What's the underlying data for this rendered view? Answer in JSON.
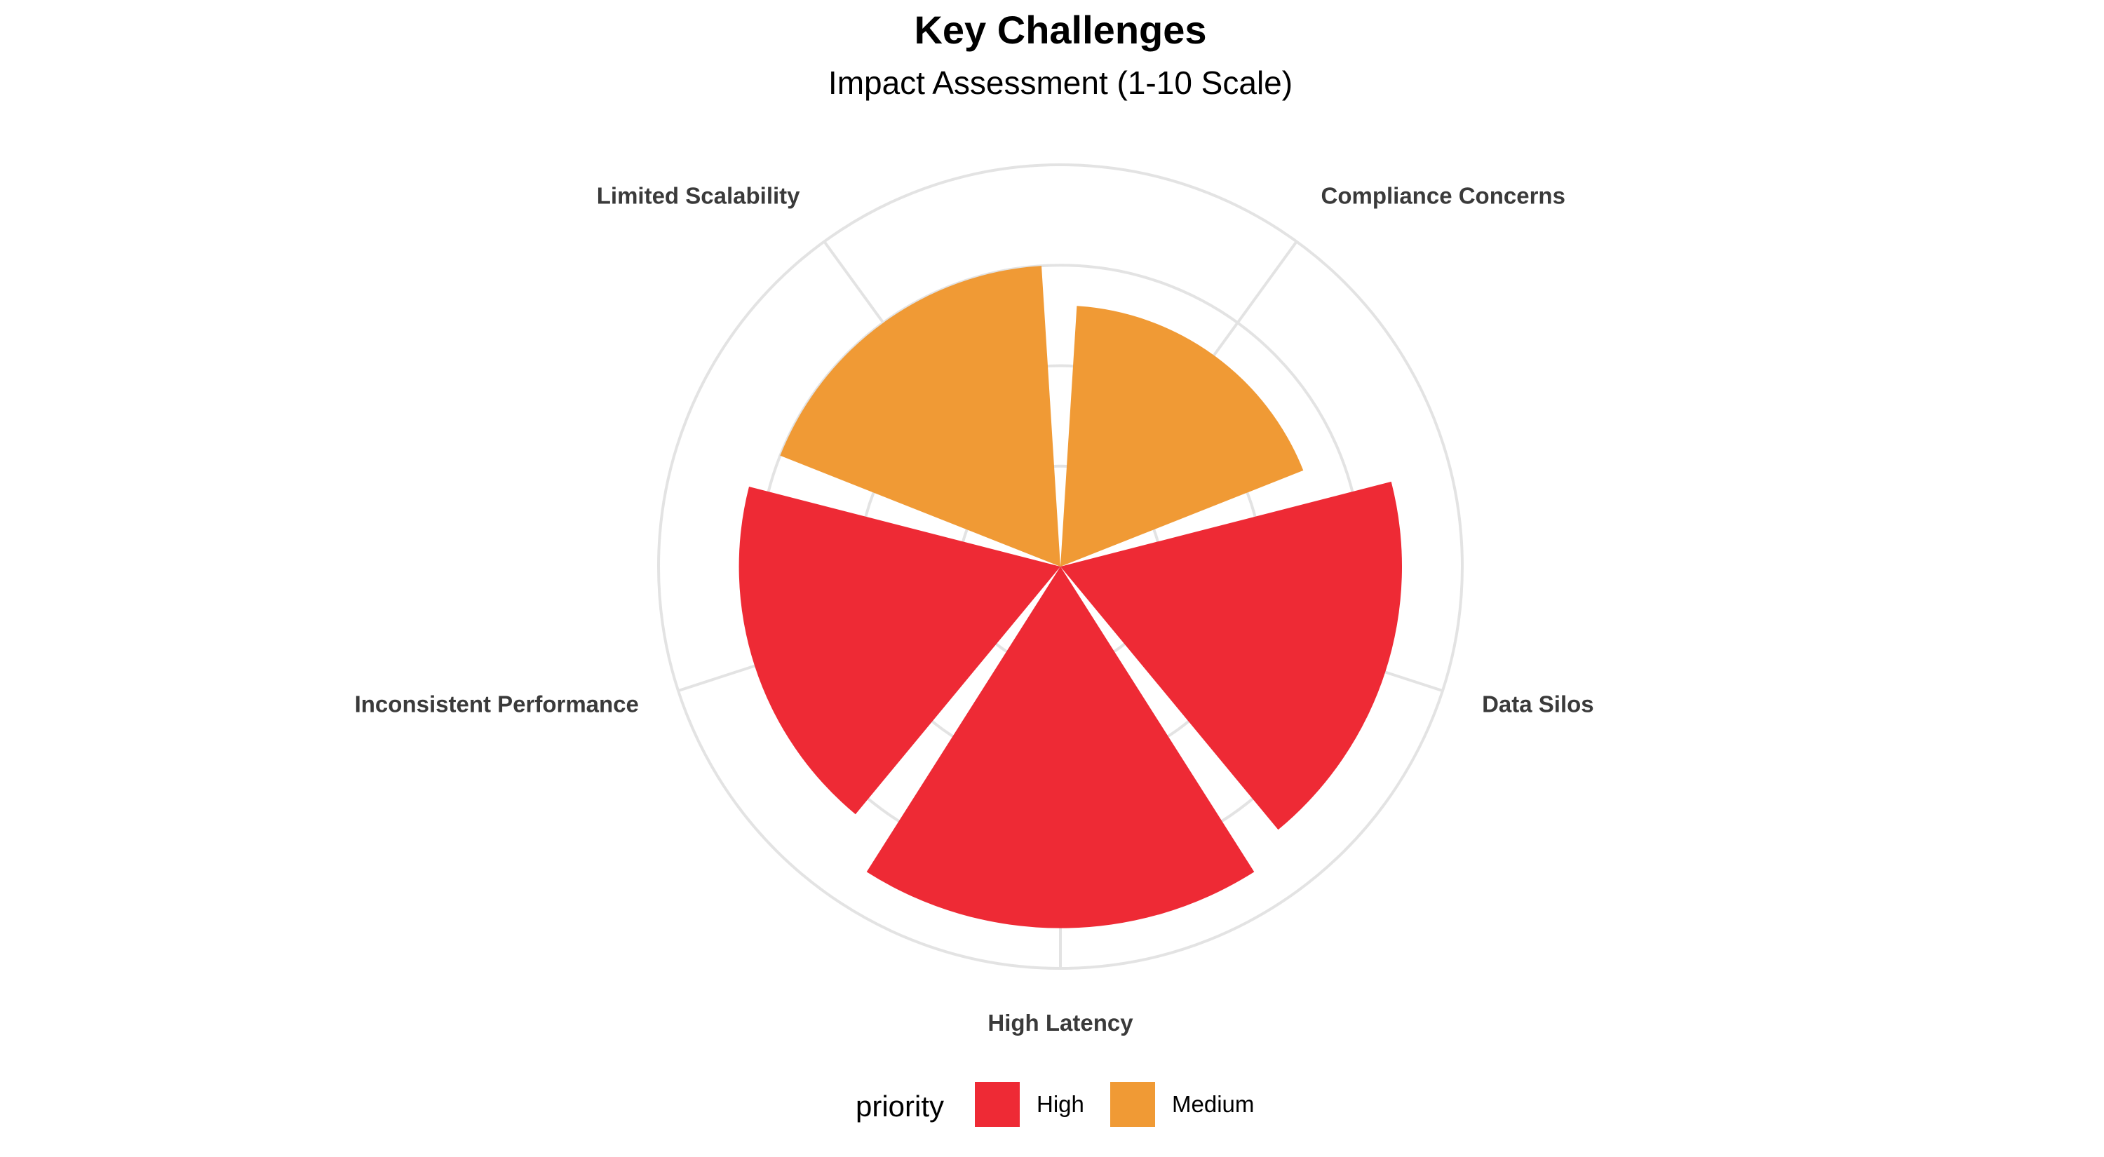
{
  "chart_data": {
    "type": "bar",
    "coordinate_system": "polar",
    "title": "Key Challenges",
    "subtitle": "Impact Assessment (1-10 Scale)",
    "categories": [
      "Compliance Concerns",
      "Data Silos",
      "High Latency",
      "Inconsistent Performance",
      "Limited Scalability"
    ],
    "values": [
      6.5,
      8.5,
      9.0,
      8.0,
      7.5
    ],
    "priority": [
      "Medium",
      "High",
      "High",
      "High",
      "Medium"
    ],
    "ylim": [
      0,
      10
    ],
    "grid": true,
    "legend": {
      "title": "priority",
      "position": "bottom",
      "items": [
        {
          "label": "High",
          "color": "#EE2A35"
        },
        {
          "label": "Medium",
          "color": "#F09A35"
        }
      ]
    },
    "colors": {
      "High": "#EE2A35",
      "Medium": "#F09A35",
      "grid": "#E3E3E3"
    }
  }
}
